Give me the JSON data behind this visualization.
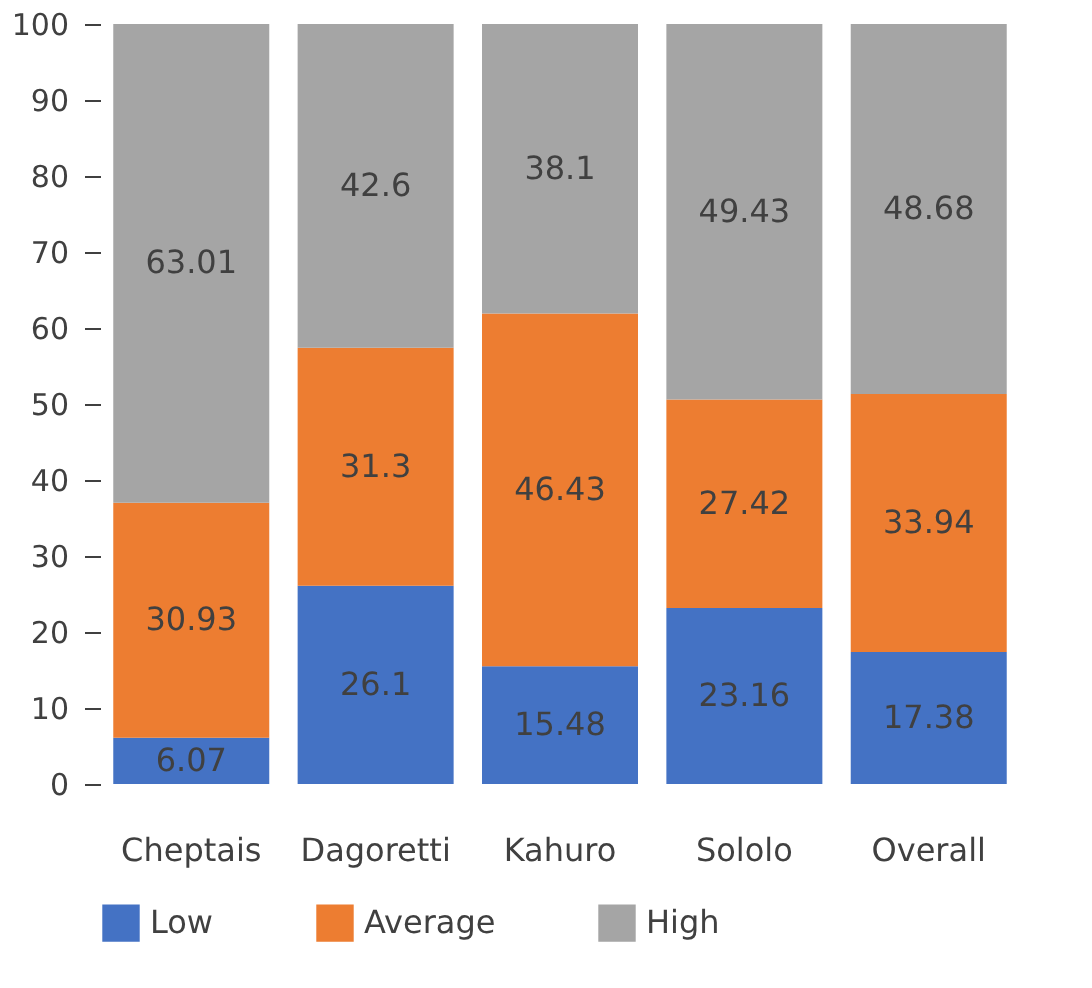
{
  "chart_data": {
    "type": "bar",
    "stacked": true,
    "categories": [
      "Cheptais",
      "Dagoretti",
      "Kahuro",
      "Sololo",
      "Overall"
    ],
    "series": [
      {
        "name": "Low",
        "color": "#4472c4",
        "values": [
          6.07,
          26.1,
          15.48,
          23.16,
          17.38
        ]
      },
      {
        "name": "Average",
        "color": "#ed7d31",
        "values": [
          30.93,
          31.3,
          46.43,
          27.42,
          33.94
        ]
      },
      {
        "name": "High",
        "color": "#a5a5a5",
        "values": [
          63.01,
          42.6,
          38.1,
          49.43,
          48.68
        ]
      }
    ],
    "ylim": [
      0,
      100
    ],
    "yticks": [
      0,
      10,
      20,
      30,
      40,
      50,
      60,
      70,
      80,
      90,
      100
    ],
    "grid": false,
    "legend": "bottom",
    "data_labels": true
  }
}
